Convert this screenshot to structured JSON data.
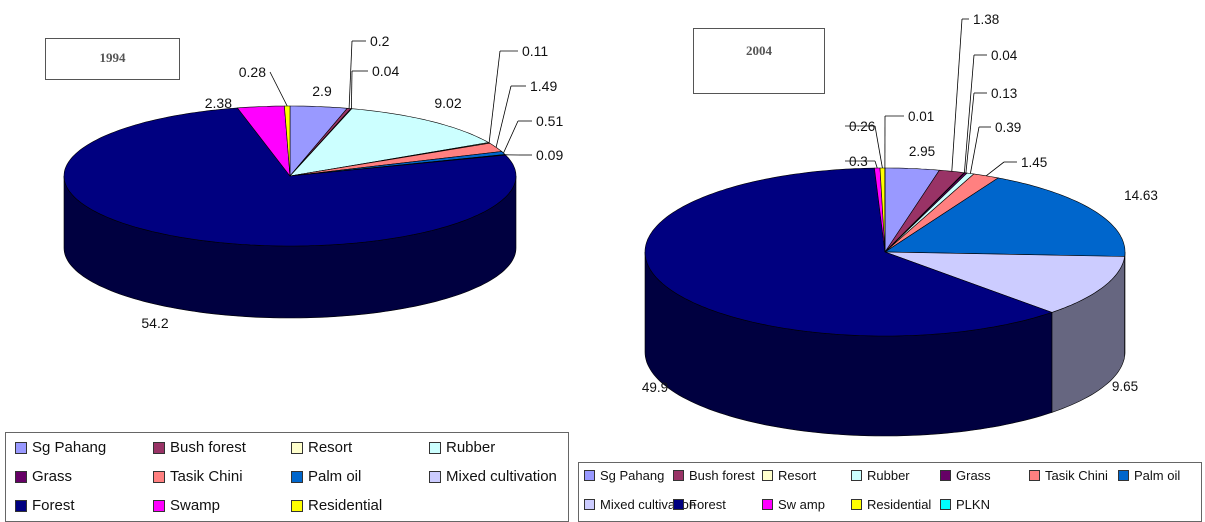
{
  "chart_data": [
    {
      "type": "pie",
      "style": "3d",
      "title": "1994",
      "categories": [
        "Sg Pahang",
        "Bush forest",
        "Resort",
        "Rubber",
        "Grass",
        "Tasik Chini",
        "Palm oil",
        "Mixed cultivation",
        "Forest",
        "Swamp",
        "Residential"
      ],
      "slices": [
        {
          "category": "Sg Pahang",
          "value": 2.9,
          "label": "2.9"
        },
        {
          "category": "Bush forest",
          "value": 0.2,
          "label": "0.2"
        },
        {
          "category": "Grass",
          "value": 0.04,
          "label": "0.04"
        },
        {
          "category": "Rubber",
          "value": 9.02,
          "label": "9.02"
        },
        {
          "category": "Resort",
          "value": 0.11,
          "label": "0.11"
        },
        {
          "category": "Tasik Chini",
          "value": 1.49,
          "label": "1.49"
        },
        {
          "category": "Palm oil",
          "value": 0.51,
          "label": "0.51"
        },
        {
          "category": "Mixed cultivation",
          "value": 0.09,
          "label": "0.09"
        },
        {
          "category": "Forest",
          "value": 54.2,
          "label": "54.2"
        },
        {
          "category": "Swamp",
          "value": 2.38,
          "label": "2.38"
        },
        {
          "category": "Residential",
          "value": 0.28,
          "label": "0.28"
        }
      ]
    },
    {
      "type": "pie",
      "style": "3d",
      "title": "2004",
      "categories": [
        "Sg Pahang",
        "Bush forest",
        "Resort",
        "Rubber",
        "Grass",
        "Tasik Chini",
        "Palm oil",
        "Mixed cultivation",
        "Forest",
        "Swamp",
        "Residential",
        "PLKN"
      ],
      "slices": [
        {
          "category": "Sg Pahang",
          "value": 2.95,
          "label": "2.95"
        },
        {
          "category": "Bush forest",
          "value": 1.38,
          "label": "1.38"
        },
        {
          "category": "Resort",
          "value": 0.04,
          "label": "0.04"
        },
        {
          "category": "Grass",
          "value": 0.13,
          "label": "0.13"
        },
        {
          "category": "Rubber",
          "value": 0.39,
          "label": "0.39"
        },
        {
          "category": "Tasik Chini",
          "value": 1.45,
          "label": "1.45"
        },
        {
          "category": "Palm oil",
          "value": 14.63,
          "label": "14.63"
        },
        {
          "category": "Mixed cultivation",
          "value": 9.65,
          "label": "9.65"
        },
        {
          "category": "Forest",
          "value": 49.9,
          "label": "49.9"
        },
        {
          "category": "Swamp",
          "value": 0.3,
          "label": "0.3"
        },
        {
          "category": "Residential",
          "value": 0.26,
          "label": "0.26"
        },
        {
          "category": "PLKN",
          "value": 0.01,
          "label": "0.01"
        }
      ]
    }
  ],
  "colors": {
    "Sg Pahang": "#9999FF",
    "Bush forest": "#993366",
    "Resort": "#FFFFCC",
    "Rubber": "#CCFFFF",
    "Grass": "#660066",
    "Tasik Chini": "#FF8080",
    "Palm oil": "#0066CC",
    "Mixed cultivation": "#CCCCFF",
    "Forest": "#000080",
    "Swamp": "#FF00FF",
    "Residential": "#FFFF00",
    "PLKN": "#00FFFF"
  },
  "legend_1994": [
    "Sg Pahang",
    "Bush forest",
    "Resort",
    "Rubber",
    "Grass",
    "Tasik Chini",
    "Palm oil",
    "Mixed cultivation",
    "Forest",
    "Swamp",
    "Residential"
  ],
  "legend_2004": [
    "Sg Pahang",
    "Bush forest",
    "Resort",
    "Rubber",
    "Grass",
    "Tasik Chini",
    "Palm oil",
    "Mixed cultivation",
    "Forest",
    "Sw amp",
    "Residential",
    "PLKN"
  ]
}
